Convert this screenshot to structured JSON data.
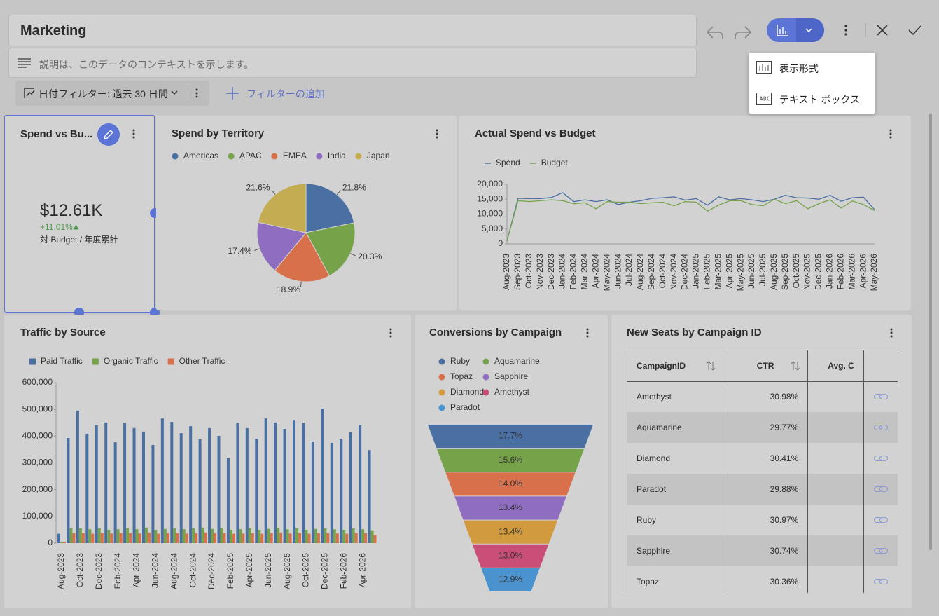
{
  "header": {
    "title": "Marketing",
    "description": "説明は、このデータのコンテキストを示します。"
  },
  "filters": {
    "date_filter": "日付フィルター: 過去 30 日間",
    "add_filter": "フィルターの追加"
  },
  "menu": {
    "items": [
      "表示形式",
      "テキスト ボックス"
    ]
  },
  "kpi": {
    "title": "Spend vs Bu...",
    "value": "$12.61K",
    "change": "+11.01%",
    "subtitle": "対 Budget / 年度累計"
  },
  "chart_data": [
    {
      "type": "pie",
      "title": "Spend by Territory",
      "categories": [
        "Americas",
        "APAC",
        "EMEA",
        "India",
        "Japan"
      ],
      "values": [
        21.8,
        20.3,
        18.9,
        17.4,
        21.6
      ],
      "value_labels": [
        "21.8%",
        "20.3%",
        "18.9%",
        "17.4%",
        "21.6%"
      ],
      "colors": [
        "#4a6fa3",
        "#76a34a",
        "#d9704c",
        "#8f6ec1",
        "#c4ac52"
      ],
      "legend": "top"
    },
    {
      "type": "line",
      "title": "Actual Spend vs Budget",
      "categories": [
        "Aug-2023",
        "Sep-2023",
        "Oct-2023",
        "Nov-2023",
        "Dec-2023",
        "Jan-2024",
        "Feb-2024",
        "Mar-2024",
        "Apr-2024",
        "May-2024",
        "Jun-2024",
        "Jul-2024",
        "Aug-2024",
        "Sep-2024",
        "Oct-2024",
        "Nov-2024",
        "Dec-2024",
        "Jan-2025",
        "Feb-2025",
        "Mar-2025",
        "Apr-2025",
        "May-2025",
        "Jun-2025",
        "Jul-2025",
        "Aug-2025",
        "Sep-2025",
        "Oct-2025",
        "Nov-2025",
        "Dec-2025",
        "Jan-2026",
        "Feb-2026",
        "Mar-2026",
        "Apr-2026",
        "May-2026"
      ],
      "series": [
        {
          "name": "Spend",
          "color": "#4a6fa3",
          "values": [
            1000,
            15300,
            15200,
            15200,
            15600,
            17200,
            14200,
            14800,
            14200,
            14800,
            13200,
            14000,
            14500,
            15300,
            15500,
            15800,
            14700,
            15200,
            13000,
            15800,
            14800,
            15200,
            14800,
            14200,
            15000,
            16300,
            15500,
            15400,
            15000,
            16300,
            14300,
            15500,
            15700,
            11500
          ]
        },
        {
          "name": "Budget",
          "color": "#76a34a",
          "values": [
            1000,
            14500,
            14200,
            14500,
            14800,
            14500,
            13500,
            13800,
            11800,
            14200,
            14000,
            14000,
            13500,
            13800,
            14000,
            12800,
            14200,
            14000,
            11000,
            13000,
            14500,
            14500,
            13200,
            12800,
            15000,
            13500,
            14500,
            11800,
            13500,
            14800,
            12000,
            14400,
            13200,
            11200
          ]
        }
      ],
      "ylim": [
        0,
        20000
      ],
      "yticks": [
        0,
        {
          "value": 5000,
          "label": "5,000"
        },
        {
          "value": 10000,
          "label": "10,000"
        },
        {
          "value": 15000,
          "label": "15,000"
        },
        {
          "value": 20000,
          "label": "20,000"
        }
      ],
      "legend": "top-left"
    },
    {
      "type": "bar",
      "title": "Traffic by Source",
      "categories": [
        "Aug-2023",
        null,
        "Oct-2023",
        null,
        "Dec-2023",
        null,
        "Feb-2024",
        null,
        "Apr-2024",
        null,
        "Jun-2024",
        null,
        "Aug-2024",
        null,
        "Oct-2024",
        null,
        "Dec-2024",
        null,
        "Feb-2025",
        null,
        "Apr-2025",
        null,
        "Jun-2025",
        null,
        "Aug-2025",
        null,
        "Oct-2025",
        null,
        "Dec-2025",
        null,
        "Feb-2026",
        null,
        "Apr-2026",
        null
      ],
      "series": [
        {
          "name": "Paid Traffic",
          "color": "#4a6fa3",
          "values": [
            35000,
            393000,
            495000,
            409000,
            440000,
            451000,
            377000,
            448000,
            430000,
            417000,
            367000,
            466000,
            453000,
            411000,
            437000,
            388000,
            430000,
            401000,
            317000,
            448000,
            430000,
            390000,
            466000,
            451000,
            427000,
            458000,
            448000,
            380000,
            503000,
            375000,
            388000,
            414000,
            440000,
            348000
          ]
        },
        {
          "name": "Organic Traffic",
          "color": "#76a34a",
          "values": [
            5000,
            55000,
            55000,
            52000,
            55000,
            50000,
            52000,
            55000,
            52000,
            58000,
            50000,
            53000,
            55000,
            52000,
            55000,
            58000,
            53000,
            55000,
            50000,
            52000,
            55000,
            50000,
            53000,
            58000,
            52000,
            55000,
            50000,
            53000,
            55000,
            52000,
            50000,
            55000,
            52000,
            48000
          ]
        },
        {
          "name": "Other Traffic",
          "color": "#d9704c",
          "values": [
            5000,
            38000,
            38000,
            35000,
            38000,
            36000,
            37000,
            38000,
            36000,
            40000,
            35000,
            37000,
            38000,
            36000,
            37000,
            40000,
            37000,
            38000,
            35000,
            36000,
            38000,
            35000,
            37000,
            40000,
            36000,
            38000,
            35000,
            37000,
            38000,
            36000,
            35000,
            38000,
            37000,
            30000
          ]
        }
      ],
      "ylim": [
        0,
        600000
      ],
      "yticks": [
        0,
        {
          "value": 100000,
          "label": "100,000"
        },
        {
          "value": 200000,
          "label": "200,000"
        },
        {
          "value": 300000,
          "label": "300,000"
        },
        {
          "value": 400000,
          "label": "400,000"
        },
        {
          "value": 500000,
          "label": "500,000"
        },
        {
          "value": 600000,
          "label": "600,000"
        }
      ],
      "legend": "top-left"
    },
    {
      "type": "funnel",
      "title": "Conversions by Campaign",
      "categories": [
        "Ruby",
        "Aquamarine",
        "Topaz",
        "Sapphire",
        "Diamond",
        "Amethyst",
        "Paradot"
      ],
      "values": [
        17.7,
        15.6,
        14.0,
        13.4,
        13.4,
        13.0,
        12.9
      ],
      "value_labels": [
        "17.7%",
        "15.6%",
        "14.0%",
        "13.4%",
        "13.4%",
        "13.0%",
        "12.9%"
      ],
      "colors": [
        "#4a6fa3",
        "#76a34a",
        "#d9704c",
        "#8f6ec1",
        "#d19a3e",
        "#c94e78",
        "#4b93cf"
      ],
      "legend": "top"
    }
  ],
  "table": {
    "title": "New Seats by Campaign ID",
    "columns": [
      "CampaignID",
      "CTR",
      "Avg. C"
    ],
    "rows": [
      [
        "Amethyst",
        "30.98%"
      ],
      [
        "Aquamarine",
        "29.77%"
      ],
      [
        "Diamond",
        "30.41%"
      ],
      [
        "Paradot",
        "29.88%"
      ],
      [
        "Ruby",
        "30.97%"
      ],
      [
        "Sapphire",
        "30.74%"
      ],
      [
        "Topaz",
        "30.36%"
      ]
    ]
  }
}
